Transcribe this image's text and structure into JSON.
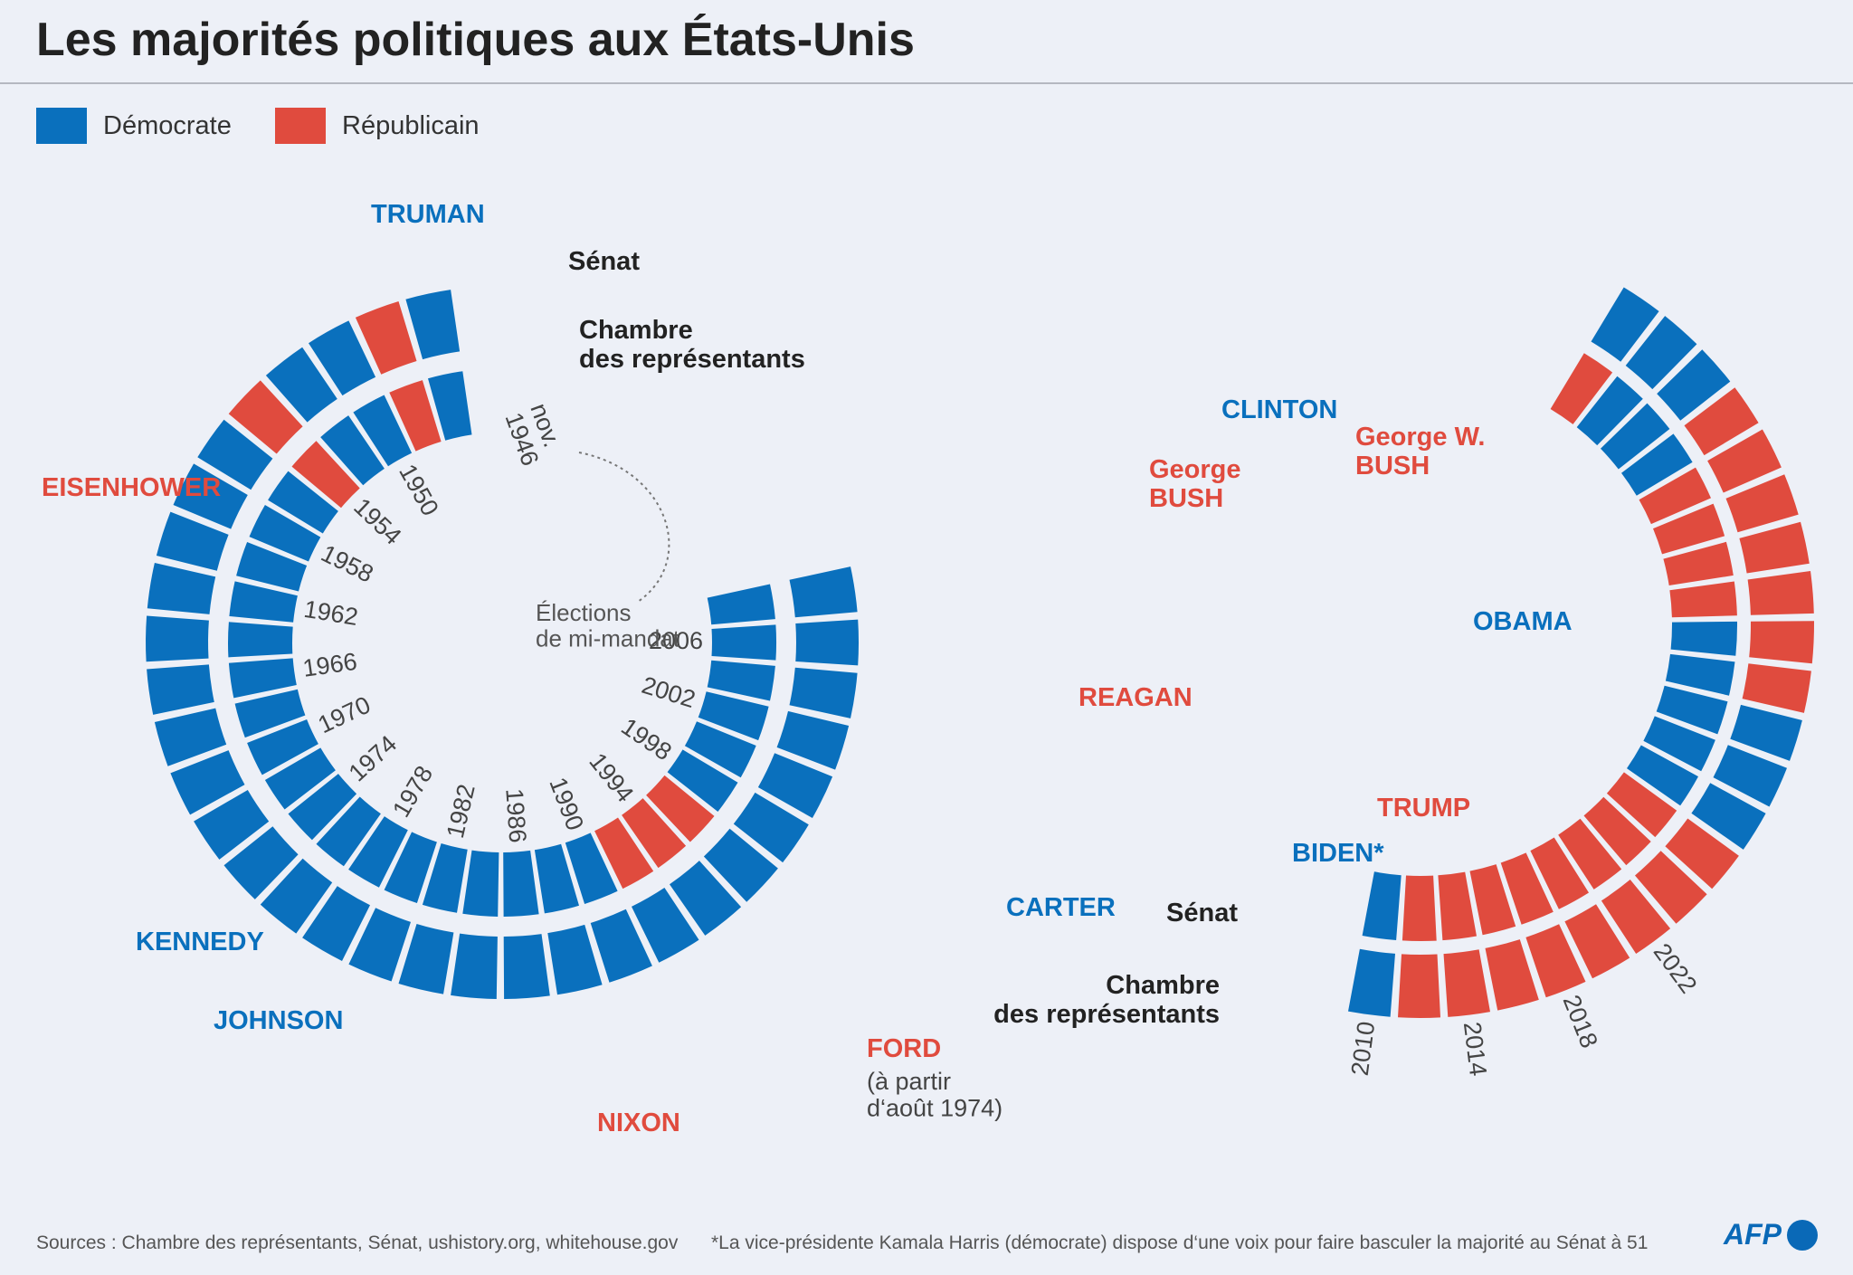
{
  "title": "Les majorités politiques aux États-Unis",
  "colors": {
    "D": "#0a70bd",
    "R": "#e04b3e",
    "bg": "#edf0f7",
    "gray": "#555555",
    "dark": "#222222"
  },
  "legend": [
    {
      "key": "D",
      "label": "Démocrate"
    },
    {
      "key": "R",
      "label": "Républicain"
    }
  ],
  "labels": {
    "senat": "Sénat",
    "chambre": [
      "Chambre",
      "des représentants"
    ],
    "mid_term": [
      "Élections",
      "de mi-mandat"
    ],
    "nov_1946": [
      "nov.",
      "1946"
    ]
  },
  "chart_data": {
    "type": "diagram",
    "start": "nov. 1946",
    "congresses": [
      {
        "senat": "D",
        "chambre": "D"
      },
      {
        "senat": "R",
        "chambre": "R"
      },
      {
        "senat": "D",
        "chambre": "D"
      },
      {
        "senat": "D",
        "chambre": "D"
      },
      {
        "senat": "R",
        "chambre": "R"
      },
      {
        "senat": "D",
        "chambre": "D"
      },
      {
        "senat": "D",
        "chambre": "D"
      },
      {
        "senat": "D",
        "chambre": "D"
      },
      {
        "senat": "D",
        "chambre": "D"
      },
      {
        "senat": "D",
        "chambre": "D"
      },
      {
        "senat": "D",
        "chambre": "D"
      },
      {
        "senat": "D",
        "chambre": "D"
      },
      {
        "senat": "D",
        "chambre": "D"
      },
      {
        "senat": "D",
        "chambre": "D"
      },
      {
        "senat": "D",
        "chambre": "D"
      },
      {
        "senat": "D",
        "chambre": "D"
      },
      {
        "senat": "D",
        "chambre": "D"
      },
      {
        "senat": "D",
        "chambre": "D"
      },
      {
        "senat": "D",
        "chambre": "D"
      },
      {
        "senat": "D",
        "chambre": "D"
      },
      {
        "senat": "D",
        "chambre": "D"
      },
      {
        "senat": "D",
        "chambre": "D"
      },
      {
        "senat": "D",
        "chambre": "D"
      },
      {
        "senat": "D",
        "chambre": "R"
      },
      {
        "senat": "D",
        "chambre": "R"
      },
      {
        "senat": "D",
        "chambre": "R"
      },
      {
        "senat": "D",
        "chambre": "D"
      },
      {
        "senat": "D",
        "chambre": "D"
      },
      {
        "senat": "D",
        "chambre": "D"
      },
      {
        "senat": "D",
        "chambre": "D"
      },
      {
        "senat": "D",
        "chambre": "D"
      },
      {
        "senat": "D",
        "chambre": "D"
      },
      {
        "senat": "D",
        "chambre": "D"
      },
      {
        "senat": "R",
        "chambre": "R"
      },
      {
        "senat": "R",
        "chambre": "R"
      },
      {
        "senat": "R",
        "chambre": "R"
      },
      {
        "senat": "R",
        "chambre": "R"
      },
      {
        "senat": "R",
        "chambre": "R"
      },
      {
        "senat": "R",
        "chambre": "R"
      },
      {
        "senat": "R",
        "chambre": "R"
      },
      {
        "senat": "R",
        "chambre": "R"
      },
      {
        "senat": "D",
        "chambre": "D"
      },
      {
        "senat": "D",
        "chambre": "D"
      },
      {
        "senat": "D",
        "chambre": "D"
      },
      {
        "senat": "R",
        "chambre": "D"
      },
      {
        "senat": "R",
        "chambre": "D"
      },
      {
        "senat": "R",
        "chambre": "R"
      },
      {
        "senat": "R",
        "chambre": "R"
      },
      {
        "senat": "R",
        "chambre": "R"
      },
      {
        "senat": "R",
        "chambre": "R"
      },
      {
        "senat": "R",
        "chambre": "D"
      },
      {
        "senat": "D",
        "chambre": "D"
      },
      {
        "senat": "D",
        "chambre": "D"
      },
      {
        "senat": "D",
        "chambre": "R"
      }
    ],
    "years": [
      "1950",
      "1954",
      "1958",
      "1962",
      "1966",
      "1970",
      "1974",
      "1978",
      "1982",
      "1986",
      "1990",
      "1994",
      "1998",
      "2002",
      "2006",
      "2010",
      "2014",
      "2018",
      "2022"
    ],
    "presidents": [
      {
        "name": [
          "TRUMAN"
        ],
        "party": "D"
      },
      {
        "name": [
          "EISENHOWER"
        ],
        "party": "R"
      },
      {
        "name": [
          "KENNEDY"
        ],
        "party": "D"
      },
      {
        "name": [
          "JOHNSON"
        ],
        "party": "D"
      },
      {
        "name": [
          "NIXON"
        ],
        "party": "R"
      },
      {
        "name": [
          "FORD"
        ],
        "party": "R",
        "note": [
          "(à partir",
          "d‘août 1974)"
        ]
      },
      {
        "name": [
          "CARTER"
        ],
        "party": "D"
      },
      {
        "name": [
          "REAGAN"
        ],
        "party": "R"
      },
      {
        "name": [
          "George",
          "BUSH"
        ],
        "party": "R"
      },
      {
        "name": [
          "CLINTON"
        ],
        "party": "D"
      },
      {
        "name": [
          "George W.",
          "BUSH"
        ],
        "party": "R"
      },
      {
        "name": [
          "OBAMA"
        ],
        "party": "D"
      },
      {
        "name": [
          "TRUMP"
        ],
        "party": "R"
      },
      {
        "name": [
          "BIDEN*"
        ],
        "party": "D"
      }
    ]
  },
  "sources": "Sources : Chambre des représentants, Sénat, ushistory.org, whitehouse.gov",
  "footnote": "*La vice-présidente Kamala Harris (démocrate) dispose d‘une voix pour faire basculer la majorité au Sénat à 51",
  "logo": "AFP"
}
